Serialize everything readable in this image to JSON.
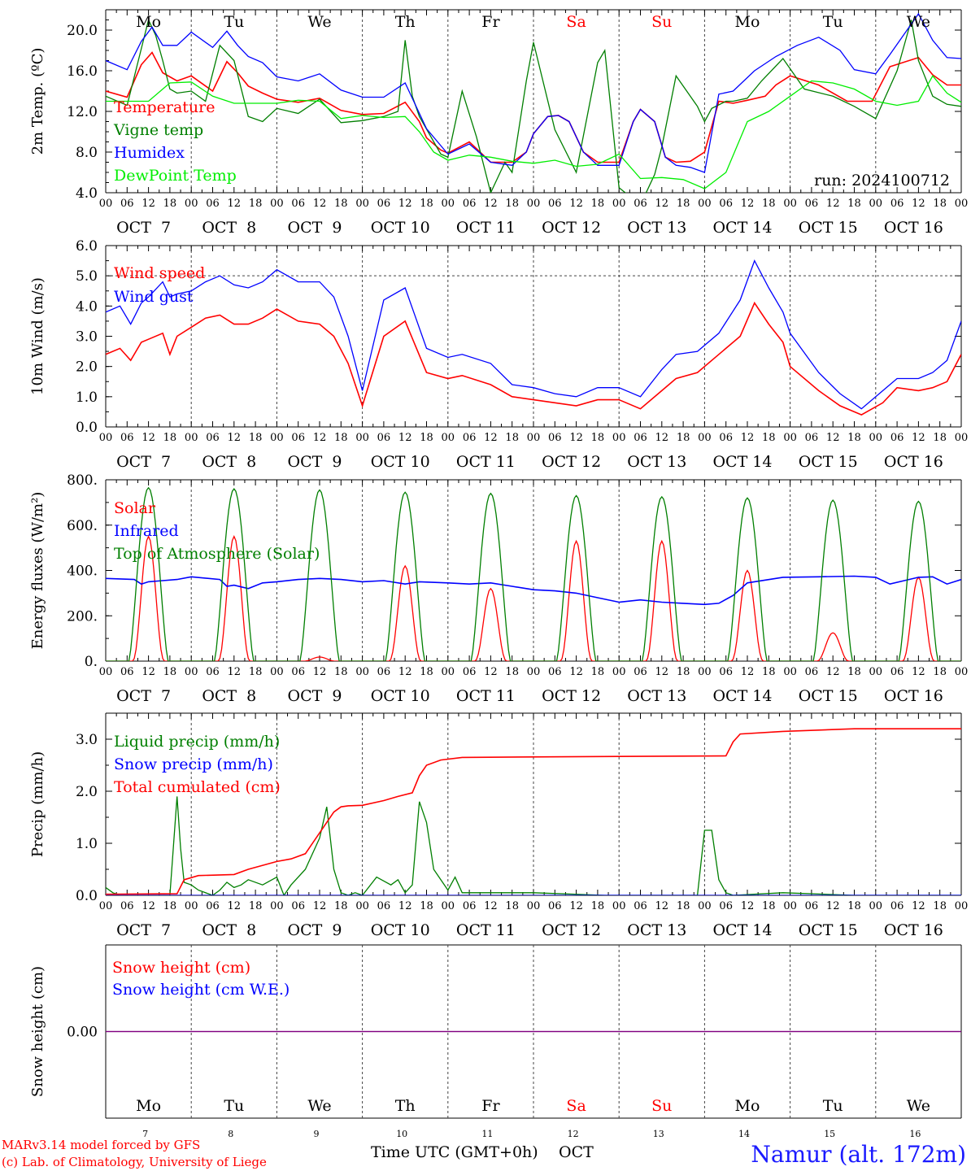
{
  "run_label": "run: 2024100712",
  "footer": {
    "model": "MARv3.14 model forced by GFS",
    "lab": "(c) Lab. of Climatology, University of Liege",
    "xlabel": "Time UTC (GMT+0h)",
    "month": "OCT",
    "station": "Namur (alt. 172m)"
  },
  "days": {
    "weekday": [
      "Mo",
      "Tu",
      "We",
      "Th",
      "Fr",
      "Sa",
      "Su",
      "Mo",
      "Tu",
      "We"
    ],
    "weekend": [
      false,
      false,
      false,
      false,
      false,
      true,
      true,
      false,
      false,
      false
    ],
    "date_labels": [
      "OCT  7",
      "OCT  8",
      "OCT  9",
      "OCT 10",
      "OCT 11",
      "OCT 12",
      "OCT 13",
      "OCT 14",
      "OCT 15",
      "OCT 16"
    ],
    "day_numbers": [
      "7",
      "8",
      "9",
      "10",
      "11",
      "12",
      "13",
      "14",
      "15",
      "16"
    ],
    "hour_ticks": [
      "00",
      "06",
      "12",
      "18"
    ],
    "final_tick": "00"
  },
  "colors": {
    "red": "#ff0000",
    "green": "#007f00",
    "blue": "#0000ff",
    "lightgreen": "#00ee00",
    "purple": "#800080",
    "weekend": "#ff0000",
    "station": "#1a1aff"
  },
  "chart_data": [
    {
      "type": "line",
      "ylabel": "2m Temp. (ºC)",
      "ylim": [
        4,
        22
      ],
      "yticks": [
        "4.0",
        "8.0",
        "12.0",
        "16.0",
        "20.0"
      ],
      "x_unit": "hours from 2024-10-07 00 UTC",
      "series": [
        {
          "name": "Temperature",
          "color": "#ff0000",
          "x": [
            0,
            6,
            10,
            13,
            16,
            20,
            24,
            30,
            34,
            37,
            40,
            44,
            48,
            54,
            60,
            66,
            72,
            78,
            84,
            88,
            90,
            94,
            96,
            102,
            108,
            114,
            118,
            120,
            124,
            127,
            130,
            134,
            138,
            144,
            148,
            150,
            154,
            157,
            160,
            164,
            168,
            172,
            176,
            180,
            185,
            188,
            192,
            200,
            208,
            215,
            220,
            228,
            232,
            236,
            240
          ],
          "y": [
            14.0,
            13.4,
            16.6,
            17.8,
            15.8,
            15.0,
            15.5,
            14.0,
            16.9,
            15.8,
            14.5,
            13.8,
            13.2,
            12.9,
            13.3,
            12.1,
            11.7,
            11.8,
            12.9,
            11.0,
            9.4,
            8.2,
            7.9,
            9.0,
            7.0,
            7.0,
            8.0,
            9.8,
            11.5,
            11.6,
            11.0,
            8.0,
            7.0,
            7.0,
            11.0,
            12.2,
            11.0,
            7.5,
            7.0,
            7.1,
            8.0,
            13.0,
            12.8,
            13.1,
            13.5,
            14.6,
            15.5,
            14.6,
            13.0,
            13.0,
            16.4,
            17.3,
            15.6,
            14.6,
            14.6
          ]
        },
        {
          "name": "Vigne temp",
          "color": "#007f00",
          "x": [
            0,
            6,
            8,
            12,
            14,
            16,
            18,
            20,
            24,
            28,
            32,
            36,
            40,
            44,
            48,
            54,
            60,
            66,
            72,
            78,
            82,
            84,
            86,
            88,
            94,
            96,
            100,
            104,
            108,
            112,
            114,
            118,
            120,
            126,
            132,
            138,
            140,
            144,
            150,
            154,
            156,
            160,
            166,
            168,
            170,
            174,
            176,
            180,
            184,
            190,
            196,
            204,
            210,
            216,
            222,
            226,
            228,
            232,
            236,
            240
          ],
          "y": [
            13.5,
            12.6,
            15.4,
            21.0,
            19.5,
            17.0,
            14.2,
            13.8,
            14.0,
            13.0,
            18.5,
            17.0,
            11.5,
            11.0,
            12.3,
            11.8,
            13.2,
            10.9,
            11.1,
            11.5,
            12.0,
            19.0,
            13.5,
            11.5,
            7.8,
            7.5,
            14.0,
            9.5,
            4.0,
            7.0,
            6.0,
            15.0,
            18.8,
            10.2,
            6.0,
            16.8,
            18.0,
            4.5,
            2.8,
            5.8,
            8.5,
            15.5,
            12.5,
            11.0,
            12.3,
            13.0,
            13.0,
            13.3,
            15.0,
            17.2,
            14.2,
            13.5,
            12.5,
            11.3,
            16.0,
            21.0,
            17.0,
            13.5,
            12.7,
            12.5
          ]
        },
        {
          "name": "Humidex",
          "color": "#0000ff",
          "x": [
            0,
            6,
            10,
            13,
            16,
            20,
            24,
            30,
            34,
            37,
            40,
            44,
            48,
            54,
            60,
            66,
            72,
            78,
            84,
            90,
            96,
            102,
            108,
            114,
            118,
            120,
            124,
            127,
            130,
            134,
            138,
            144,
            148,
            150,
            154,
            157,
            160,
            164,
            168,
            172,
            176,
            182,
            188,
            194,
            200,
            206,
            210,
            216,
            220,
            228,
            232,
            236,
            240
          ],
          "y": [
            17.0,
            16.1,
            18.9,
            20.3,
            18.5,
            18.5,
            19.8,
            18.3,
            19.9,
            18.5,
            17.4,
            16.8,
            15.4,
            15.0,
            15.7,
            14.1,
            13.4,
            13.4,
            14.8,
            10.3,
            7.8,
            8.8,
            7.0,
            6.7,
            8.0,
            9.8,
            11.5,
            11.6,
            11.0,
            8.0,
            6.7,
            6.7,
            11.0,
            12.2,
            11.0,
            7.5,
            6.7,
            6.5,
            6.0,
            13.7,
            14.0,
            16.0,
            17.4,
            18.5,
            19.3,
            18.0,
            16.1,
            15.7,
            17.6,
            21.6,
            19.0,
            17.3,
            17.2
          ]
        },
        {
          "name": "DewPoint Temp",
          "color": "#00ee00",
          "x": [
            0,
            6,
            12,
            18,
            24,
            30,
            36,
            42,
            48,
            54,
            60,
            66,
            72,
            78,
            84,
            88,
            92,
            96,
            102,
            108,
            114,
            120,
            126,
            132,
            138,
            144,
            150,
            156,
            162,
            168,
            174,
            180,
            186,
            192,
            198,
            204,
            210,
            216,
            222,
            228,
            232,
            236,
            240
          ],
          "y": [
            13.0,
            13.0,
            13.0,
            14.8,
            14.9,
            13.5,
            12.8,
            12.8,
            12.8,
            13.1,
            13.0,
            11.3,
            11.6,
            11.4,
            11.5,
            10.0,
            8.0,
            7.2,
            7.7,
            7.5,
            7.1,
            6.9,
            7.2,
            6.6,
            6.8,
            7.8,
            5.4,
            5.5,
            5.3,
            4.4,
            6.0,
            11.0,
            12.0,
            13.5,
            15.0,
            14.8,
            14.2,
            13.0,
            12.6,
            13.0,
            15.5,
            13.8,
            12.9
          ]
        }
      ]
    },
    {
      "type": "line",
      "ylabel": "10m Wind (m/s)",
      "ylim": [
        0,
        6
      ],
      "yticks": [
        "0.0",
        "1.0",
        "2.0",
        "3.0",
        "4.0",
        "5.0",
        "6.0"
      ],
      "x_unit": "hours from 2024-10-07 00 UTC",
      "series": [
        {
          "name": "Wind speed",
          "color": "#ff0000",
          "x": [
            0,
            4,
            7,
            10,
            12,
            16,
            18,
            20,
            24,
            28,
            32,
            36,
            40,
            44,
            48,
            54,
            60,
            64,
            68,
            72,
            78,
            84,
            90,
            96,
            100,
            108,
            114,
            120,
            126,
            132,
            138,
            144,
            150,
            156,
            160,
            166,
            172,
            178,
            182,
            186,
            190,
            192,
            200,
            206,
            212,
            218,
            222,
            228,
            232,
            236,
            240
          ],
          "y": [
            2.4,
            2.6,
            2.2,
            2.8,
            2.9,
            3.1,
            2.4,
            3.0,
            3.3,
            3.6,
            3.7,
            3.4,
            3.4,
            3.6,
            3.9,
            3.5,
            3.4,
            3.0,
            2.1,
            0.7,
            3.0,
            3.5,
            1.8,
            1.6,
            1.7,
            1.4,
            1.0,
            0.9,
            0.8,
            0.7,
            0.9,
            0.9,
            0.6,
            1.2,
            1.6,
            1.8,
            2.4,
            3.0,
            4.1,
            3.4,
            2.8,
            2.0,
            1.2,
            0.7,
            0.4,
            0.8,
            1.3,
            1.2,
            1.3,
            1.5,
            2.4
          ]
        },
        {
          "name": "Wind gust",
          "color": "#0000ff",
          "x": [
            0,
            4,
            7,
            10,
            12,
            16,
            18,
            20,
            24,
            28,
            32,
            36,
            40,
            44,
            48,
            54,
            60,
            64,
            68,
            72,
            78,
            84,
            90,
            96,
            100,
            108,
            114,
            120,
            126,
            132,
            138,
            144,
            150,
            156,
            160,
            166,
            172,
            178,
            182,
            186,
            190,
            192,
            200,
            206,
            212,
            218,
            222,
            228,
            232,
            236,
            240
          ],
          "y": [
            3.8,
            4.0,
            3.4,
            4.1,
            4.3,
            4.8,
            4.3,
            4.4,
            4.5,
            4.8,
            5.0,
            4.7,
            4.6,
            4.8,
            5.2,
            4.8,
            4.8,
            4.3,
            3.0,
            1.2,
            4.2,
            4.6,
            2.6,
            2.3,
            2.4,
            2.1,
            1.4,
            1.3,
            1.1,
            1.0,
            1.3,
            1.3,
            1.0,
            1.9,
            2.4,
            2.5,
            3.1,
            4.2,
            5.5,
            4.6,
            3.8,
            3.1,
            1.8,
            1.1,
            0.6,
            1.2,
            1.6,
            1.6,
            1.8,
            2.2,
            3.5
          ]
        }
      ]
    },
    {
      "type": "line",
      "ylabel": "Energy fluxes (W/m²)",
      "ylim": [
        0,
        800
      ],
      "yticks": [
        "0.",
        "200.",
        "400.",
        "600.",
        "800."
      ],
      "x_unit": "hours from 2024-10-07 00 UTC",
      "series": [
        {
          "name": "Solar",
          "color": "#ff0000",
          "days_peak": [
            550,
            550,
            18,
            420,
            320,
            530,
            530,
            400,
            125,
            370
          ]
        },
        {
          "name": "Infrared",
          "color": "#0000ff",
          "x": [
            0,
            8,
            10,
            12,
            16,
            20,
            24,
            32,
            34,
            36,
            40,
            44,
            48,
            54,
            60,
            66,
            72,
            78,
            84,
            88,
            96,
            102,
            108,
            114,
            120,
            126,
            132,
            138,
            144,
            150,
            156,
            162,
            168,
            172,
            176,
            180,
            190,
            200,
            210,
            216,
            220,
            228,
            232,
            236,
            240
          ],
          "y": [
            365,
            360,
            340,
            350,
            355,
            360,
            372,
            360,
            330,
            335,
            320,
            345,
            350,
            360,
            365,
            360,
            350,
            355,
            340,
            350,
            345,
            340,
            345,
            330,
            315,
            310,
            300,
            280,
            260,
            270,
            260,
            255,
            250,
            255,
            290,
            345,
            370,
            372,
            375,
            370,
            340,
            370,
            372,
            340,
            360
          ]
        },
        {
          "name": "Top of Atmosphere (Solar)",
          "color": "#007f00",
          "days_peak": [
            765,
            760,
            755,
            745,
            740,
            730,
            725,
            720,
            710,
            705
          ]
        }
      ]
    },
    {
      "type": "line",
      "ylabel": "Precip (mm/h)",
      "ylim": [
        0,
        3.5
      ],
      "yticks": [
        "0.0",
        "1.0",
        "2.0",
        "3.0"
      ],
      "x_unit": "hours from 2024-10-07 00 UTC",
      "series": [
        {
          "name": "Liquid precip (mm/h)",
          "color": "#007f00",
          "x": [
            0,
            2,
            4,
            8,
            18,
            20,
            21,
            22,
            24,
            26,
            30,
            32,
            34,
            36,
            38,
            40,
            44,
            48,
            50,
            52,
            56,
            60,
            62,
            64,
            66,
            68,
            70,
            72,
            76,
            80,
            82,
            84,
            86,
            88,
            90,
            92,
            94,
            96,
            98,
            100,
            120,
            140,
            160,
            166,
            168,
            170,
            172,
            174,
            176,
            190,
            210,
            240
          ],
          "y": [
            0.15,
            0.05,
            0.0,
            0.0,
            0.0,
            1.9,
            0.9,
            0.25,
            0.2,
            0.1,
            0.0,
            0.1,
            0.25,
            0.15,
            0.2,
            0.3,
            0.2,
            0.35,
            0.0,
            0.2,
            0.5,
            1.1,
            1.7,
            0.5,
            0.05,
            0.0,
            0.05,
            0.0,
            0.35,
            0.2,
            0.3,
            0.05,
            0.2,
            1.8,
            1.4,
            0.5,
            0.3,
            0.1,
            0.35,
            0.05,
            0.05,
            0.0,
            0.0,
            0.0,
            1.25,
            1.25,
            0.3,
            0.05,
            0.0,
            0.05,
            0.0,
            0.0
          ]
        },
        {
          "name": "Snow precip (mm/h)",
          "color": "#0000ff",
          "x": [
            0,
            240
          ],
          "y": [
            0,
            0
          ]
        },
        {
          "name": "Total cumulated (cm)",
          "color": "#ff0000",
          "x": [
            0,
            20,
            22,
            26,
            36,
            40,
            48,
            52,
            56,
            60,
            64,
            66,
            68,
            72,
            78,
            82,
            86,
            88,
            90,
            94,
            100,
            120,
            150,
            174,
            176,
            178,
            190,
            210,
            240
          ],
          "y": [
            0.02,
            0.03,
            0.3,
            0.38,
            0.4,
            0.5,
            0.65,
            0.7,
            0.8,
            1.2,
            1.6,
            1.7,
            1.72,
            1.73,
            1.82,
            1.9,
            1.97,
            2.3,
            2.5,
            2.6,
            2.65,
            2.66,
            2.67,
            2.68,
            2.95,
            3.1,
            3.15,
            3.2,
            3.2
          ]
        }
      ]
    },
    {
      "type": "line",
      "ylabel": "Snow height (cm)",
      "ylim": [
        -1,
        1
      ],
      "yticks": [
        "0.00"
      ],
      "x_unit": "hours from 2024-10-07 00 UTC",
      "series": [
        {
          "name": "Snow height (cm)",
          "color": "#ff0000",
          "x": [
            0,
            240
          ],
          "y": [
            0,
            0
          ]
        },
        {
          "name": "Snow height (cm W.E.)",
          "color": "#0000ff",
          "x": [
            0,
            240
          ],
          "y": [
            0,
            0
          ]
        }
      ]
    }
  ]
}
